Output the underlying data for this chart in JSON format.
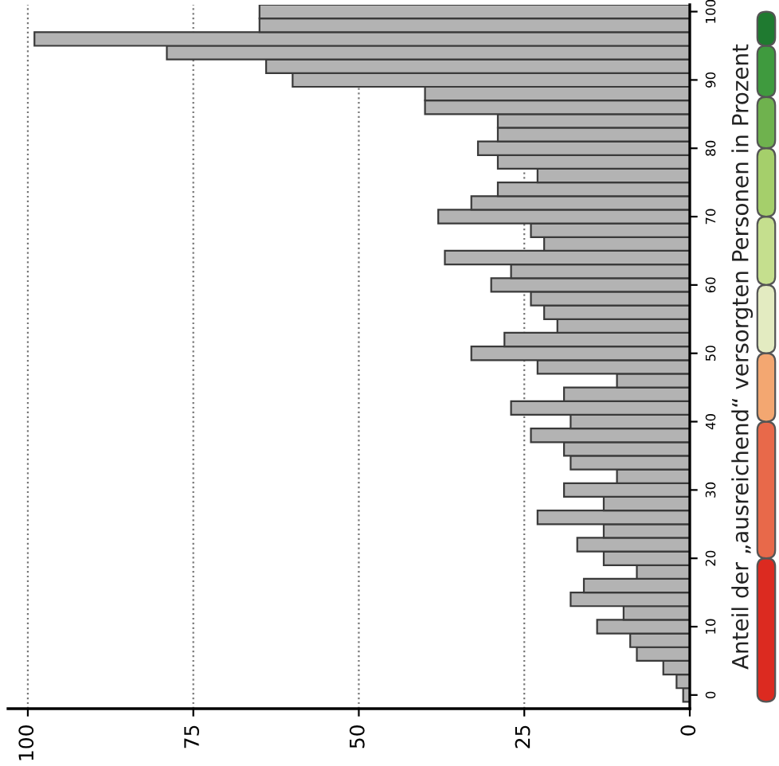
{
  "chart_data": {
    "type": "histogram",
    "orientation": "horizontal",
    "ylabel": "Anteil der „ausreichend“ versorgten Personen in Prozent",
    "bins": [
      -1,
      1,
      3,
      5,
      7,
      9,
      11,
      13,
      15,
      17,
      19,
      21,
      23,
      25,
      27,
      29,
      31,
      33,
      35,
      37,
      39,
      41,
      43,
      45,
      47,
      49,
      51,
      53,
      55,
      57,
      59,
      61,
      63,
      65,
      67,
      69,
      71,
      73,
      75,
      77,
      79,
      81,
      83,
      85,
      87,
      89,
      91,
      93,
      95,
      97,
      99,
      101
    ],
    "values": [
      1,
      2,
      4,
      8,
      9,
      14,
      10,
      18,
      16,
      8,
      13,
      17,
      13,
      23,
      13,
      19,
      11,
      18,
      19,
      24,
      18,
      27,
      19,
      11,
      23,
      33,
      28,
      20,
      22,
      24,
      30,
      27,
      37,
      22,
      24,
      38,
      33,
      29,
      23,
      29,
      32,
      29,
      29,
      40,
      40,
      60,
      64,
      79,
      99,
      65,
      65
    ],
    "color": "#b3b3b3",
    "xlim": [
      103,
      0
    ],
    "xticks": [
      0,
      25,
      50,
      75,
      100
    ],
    "ylim": [
      -2,
      101
    ],
    "yticks": [
      0,
      10,
      20,
      30,
      40,
      50,
      60,
      70,
      80,
      90,
      100
    ],
    "grid": "x"
  }
}
